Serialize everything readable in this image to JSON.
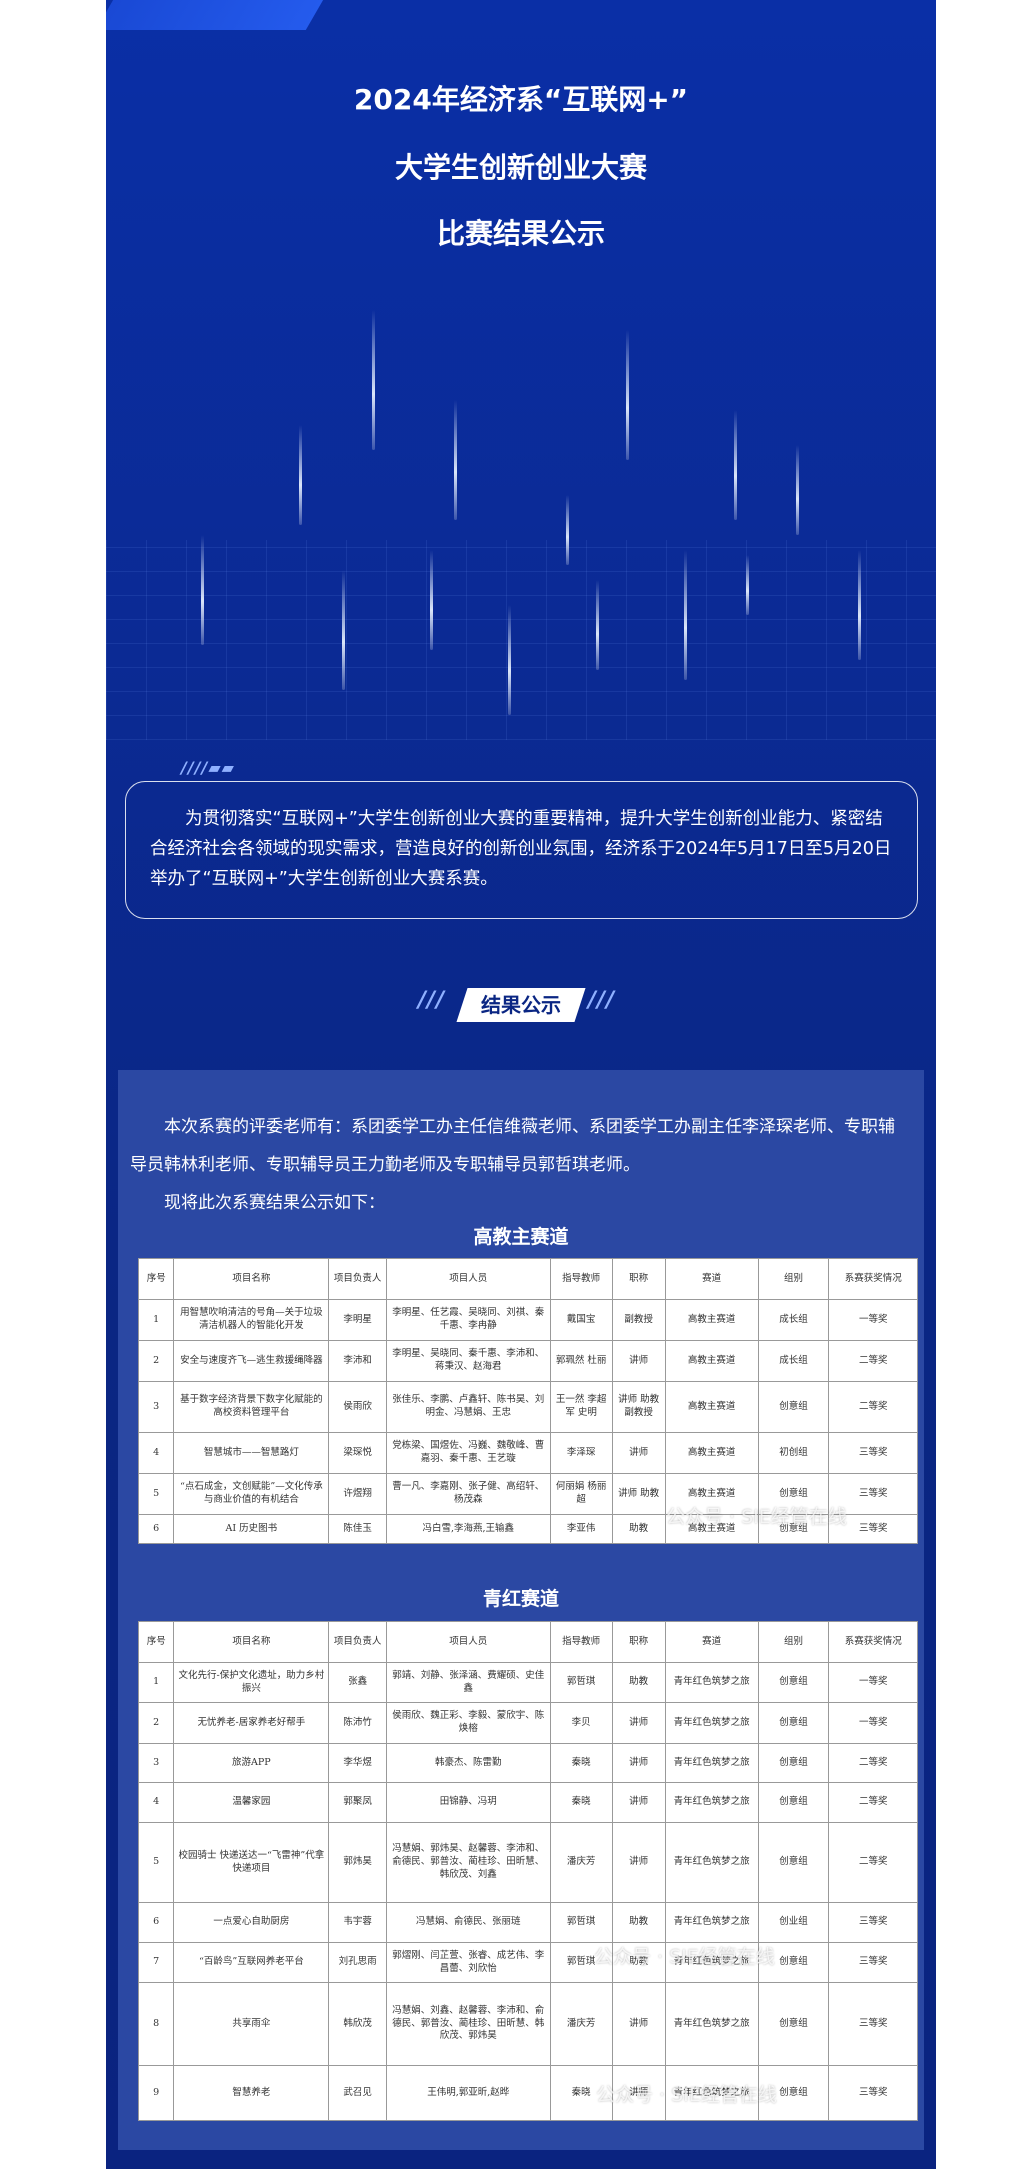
{
  "header": {
    "title_lines": [
      "2024年经济系“互联网+”",
      "大学生创新创业大赛",
      "比赛结果公示"
    ]
  },
  "intro": {
    "text": "为贯彻落实“互联网+”大学生创新创业大赛的重要精神，提升大学生创新创业能力、紧密结合经济社会各领域的现实需求，营造良好的创新创业氛围，经济系于2024年5月17日至5月20日举办了“互联网+”大学生创新创业大赛系赛。"
  },
  "section": {
    "heading": "结果公示"
  },
  "body": {
    "paragraphs": [
      "本次系赛的评委老师有：系团委学工办主任信维薇老师、系团委学工办副主任李泽琛老师、专职辅导员韩林利老师、专职辅导员王力勤老师及专职辅导员郭哲琪老师。",
      "现将此次系赛结果公示如下："
    ]
  },
  "tables": [
    {
      "title": "高教主赛道",
      "columns": [
        "序号",
        "项目名称",
        "项目负责人",
        "项目人员",
        "指导教师",
        "职称",
        "赛道",
        "组别",
        "系赛获奖情况"
      ],
      "rows": [
        [
          "1",
          "用智慧吹响清洁的号角—关于垃圾清洁机器人的智能化开发",
          "李明星",
          "李明星、任艺霞、吴晓同、刘祺、秦千惠、李冉静",
          "戴国宝",
          "副教授",
          "高教主赛道",
          "成长组",
          "一等奖"
        ],
        [
          "2",
          "安全与速度齐飞—逃生救援绳降器",
          "李沛和",
          "李明星、吴晓同、秦千惠、李沛和、蒋秉汉、赵海君",
          "郭珮然 杜丽",
          "讲师",
          "高教主赛道",
          "成长组",
          "二等奖"
        ],
        [
          "3",
          "基于数字经济背景下数字化赋能的高校资料管理平台",
          "侯雨欣",
          "张佳乐、李鹏、卢鑫轩、陈书昊、刘明金、冯慧娟、王忠",
          "王一然 李超军 史明",
          "讲师 助教 副教授",
          "高教主赛道",
          "创意组",
          "二等奖"
        ],
        [
          "4",
          "智慧城市——智慧路灯",
          "梁琛悦",
          "党栋梁、国煜佐、冯巍、魏敬峰、曹嘉羽、秦千惠、王艺璇",
          "李泽琛",
          "讲师",
          "高教主赛道",
          "初创组",
          "三等奖"
        ],
        [
          "5",
          "“点石成金，文创赋能”—文化传承与商业价值的有机结合",
          "许煜翔",
          "曹一凡、李嘉刚、张子健、高绍轩、杨茂森",
          "何丽娟 杨丽超",
          "讲师 助教",
          "高教主赛道",
          "创意组",
          "三等奖"
        ],
        [
          "6",
          "AI 历史图书",
          "陈佳玉",
          "冯白雪,李海燕,王输鑫",
          "李亚伟",
          "助教",
          "高教主赛道",
          "创意组",
          "三等奖"
        ]
      ]
    },
    {
      "title": "青红赛道",
      "columns": [
        "序号",
        "项目名称",
        "项目负责人",
        "项目人员",
        "指导教师",
        "职称",
        "赛道",
        "组别",
        "系赛获奖情况"
      ],
      "rows": [
        [
          "1",
          "文化先行-保护文化遗址，助力乡村振兴",
          "张鑫",
          "郭靖、刘静、张泽涵、费耀硕、史佳鑫",
          "郭哲琪",
          "助教",
          "青年红色筑梦之旅",
          "创意组",
          "一等奖"
        ],
        [
          "2",
          "无忧养老-居家养老好帮手",
          "陈沛竹",
          "侯雨欣、魏正彩、李毅、蒙欣宇、陈焕榕",
          "李贝",
          "讲师",
          "青年红色筑梦之旅",
          "创意组",
          "一等奖"
        ],
        [
          "3",
          "旅游APP",
          "李华煜",
          "韩豪杰、陈雷勤",
          "秦晓",
          "讲师",
          "青年红色筑梦之旅",
          "创意组",
          "二等奖"
        ],
        [
          "4",
          "温馨家园",
          "郭聚凤",
          "田锦静、冯玥",
          "秦晓",
          "讲师",
          "青年红色筑梦之旅",
          "创意组",
          "二等奖"
        ],
        [
          "5",
          "校园骑士 快递送达一“飞雷神”代拿快递项目",
          "郭炜昊",
          "冯慧娟、郭炜昊、赵馨蓉、李沛和、俞德民、郭普汝、蔺桂珍、田昕慧、韩欣茂、刘鑫",
          "潘庆芳",
          "讲师",
          "青年红色筑梦之旅",
          "创意组",
          "二等奖"
        ],
        [
          "6",
          "一点爱心自助厨房",
          "韦宇蓉",
          "冯慧娟、俞德民、张丽琏",
          "郭哲琪",
          "助教",
          "青年红色筑梦之旅",
          "创业组",
          "三等奖"
        ],
        [
          "7",
          "“百龄鸟”互联网养老平台",
          "刘孔思雨",
          "郭熠刚、闫芷萱、张睿、成艺伟、李昌蕾、刘欣怡",
          "郭哲琪",
          "助教",
          "青年红色筑梦之旅",
          "创意组",
          "三等奖"
        ],
        [
          "8",
          "共享雨伞",
          "韩欣茂",
          "冯慧娟、刘鑫、赵馨蓉、李沛和、俞德民、郭普汝、蔺桂珍、田昕慧、韩欣茂、郭炜昊",
          "潘庆芳",
          "讲师",
          "青年红色筑梦之旅",
          "创意组",
          "三等奖"
        ],
        [
          "9",
          "智慧养老",
          "武召见",
          "王伟明,郭亚昕,赵晔",
          "秦晓",
          "讲师",
          "青年红色筑梦之旅",
          "创意组",
          "三等奖"
        ]
      ]
    }
  ],
  "watermark": "公众号 · SIE经管在线"
}
